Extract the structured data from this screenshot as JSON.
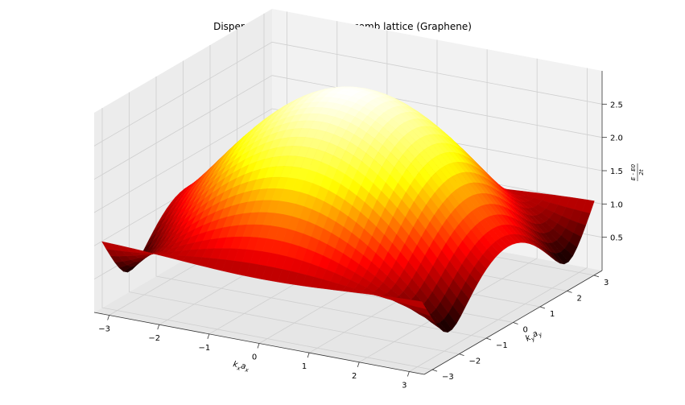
{
  "chart_data": {
    "type": "surface3d",
    "title": "Dispersion relation for honeycomb lattice (Graphene)",
    "xlabel": "k_x a_x",
    "ylabel": "k_y a_y",
    "zlabel": "(E - E0) / 2t",
    "xlabel_base": "k",
    "xlabel_sub1": "x",
    "xlabel_mid": "a",
    "xlabel_sub2": "x",
    "ylabel_base": "k",
    "ylabel_sub1": "y",
    "ylabel_mid": "a",
    "ylabel_sub2": "y",
    "zlabel_num": "E - E0",
    "zlabel_den": "2t",
    "xlim": [
      -3.3,
      3.3
    ],
    "ylim": [
      -3.3,
      3.3
    ],
    "zlim": [
      0.0,
      3.0
    ],
    "xticks": [
      -3,
      -2,
      -1,
      0,
      1,
      2,
      3
    ],
    "yticks": [
      -3,
      -2,
      -1,
      0,
      1,
      2,
      3
    ],
    "zticks": [
      0.5,
      1.0,
      1.5,
      2.0,
      2.5
    ],
    "zticklabels": [
      "0.5",
      "1.0",
      "1.5",
      "2.0",
      "2.5"
    ],
    "function": "sqrt(1 + 4*cos(sqrt(3)/2*kx)*cos(ky/2) + 4*cos(ky/2)^2) / 1.0",
    "grid_n": 40,
    "colormap": "hot",
    "colormap_stops": [
      "#0b0000",
      "#ff0000",
      "#ffff00",
      "#ffffff"
    ],
    "grid": true,
    "pane_colors": [
      "#f2f2f2",
      "#e6e6e6",
      "#ececec"
    ]
  }
}
